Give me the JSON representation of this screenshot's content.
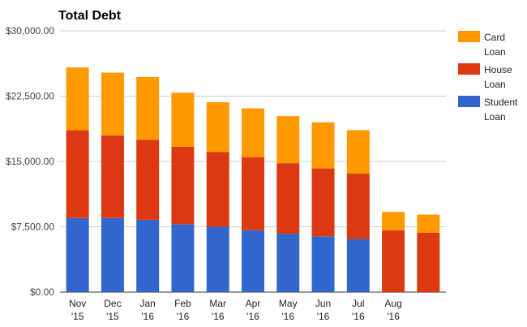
{
  "chart_data": {
    "type": "bar",
    "stacked": true,
    "title": "Total Debt",
    "categories": [
      [
        "Nov",
        "'15"
      ],
      [
        "Dec",
        "'15"
      ],
      [
        "Jan",
        "'16"
      ],
      [
        "Feb",
        "'16"
      ],
      [
        "Mar",
        "'16"
      ],
      [
        "Apr",
        "'16"
      ],
      [
        "May",
        "'16"
      ],
      [
        "Jun",
        "'16"
      ],
      [
        "Jul",
        "'16"
      ],
      [
        "Aug",
        "'16"
      ],
      [
        "",
        ""
      ]
    ],
    "series": [
      {
        "name": [
          "Student",
          "Loan"
        ],
        "color": "#3366cc",
        "values": [
          8500,
          8500,
          8300,
          7800,
          7500,
          7100,
          6700,
          6400,
          6100,
          0,
          0
        ]
      },
      {
        "name": [
          "House",
          "Loan"
        ],
        "color": "#dc3912",
        "values": [
          10100,
          9500,
          9200,
          8900,
          8600,
          8400,
          8100,
          7800,
          7500,
          7100,
          6800
        ]
      },
      {
        "name": [
          "Card",
          "Loan"
        ],
        "color": "#ff9900",
        "values": [
          7200,
          7200,
          7200,
          6200,
          5700,
          5600,
          5400,
          5300,
          5000,
          2100,
          2100
        ]
      }
    ],
    "ylim": [
      0,
      30000
    ],
    "yticks": [
      "$0.00",
      "$7,500.00",
      "$15,000.00",
      "$22,500.00",
      "$30,000.00"
    ],
    "ytick_values": [
      0,
      7500,
      15000,
      22500,
      30000
    ],
    "grid": true,
    "legend_position": "right"
  }
}
